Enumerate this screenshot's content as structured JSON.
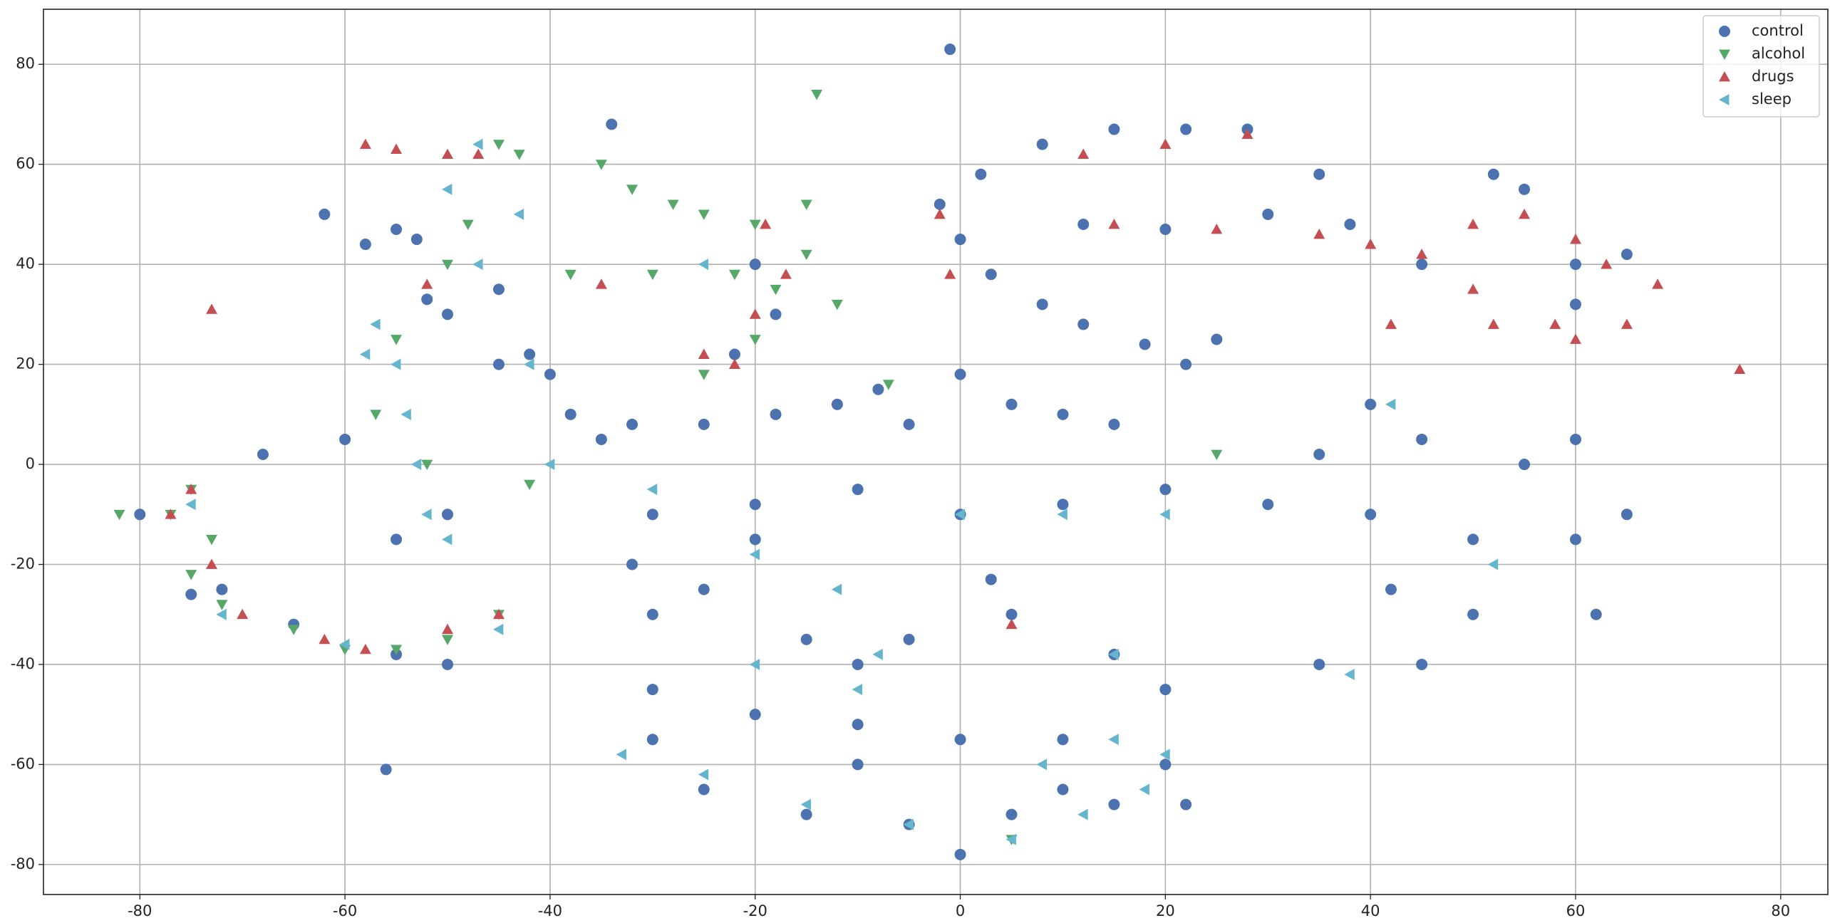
{
  "chart_data": {
    "type": "scatter",
    "xlim": [
      -89.4,
      84.6
    ],
    "ylim": [
      -86,
      91
    ],
    "xticks": [
      -80,
      -60,
      -40,
      -20,
      0,
      20,
      40,
      60,
      80
    ],
    "yticks": [
      -80,
      -60,
      -40,
      -20,
      0,
      20,
      40,
      60,
      80
    ],
    "grid": true,
    "legend": "upper right",
    "series": [
      {
        "name": "control",
        "color": "#4c72b0",
        "marker": "o",
        "x": [
          -55,
          -53,
          -62,
          -58,
          -52,
          -50,
          -45,
          -42,
          -40,
          -38,
          -35,
          -32,
          -25,
          -18,
          -12,
          -8,
          -5,
          0,
          5,
          10,
          15,
          -34,
          -22,
          -18,
          -20,
          -45,
          -60,
          -55,
          -50,
          -68,
          -72,
          -65,
          -55,
          -50,
          -75,
          -56,
          -1,
          -80,
          -2,
          2,
          8,
          15,
          22,
          28,
          0,
          3,
          8,
          12,
          18,
          22,
          25,
          12,
          20,
          30,
          38,
          35,
          45,
          52,
          55,
          60,
          65,
          60,
          -30,
          -20,
          -10,
          0,
          10,
          20,
          30,
          40,
          50,
          60,
          65,
          45,
          40,
          55,
          60,
          35,
          42,
          50,
          62,
          45,
          35,
          -32,
          -25,
          -20,
          -30,
          -15,
          -10,
          -5,
          5,
          15,
          20,
          -30,
          -20,
          -10,
          0,
          10,
          20,
          22,
          -30,
          -25,
          -15,
          -5,
          5,
          15,
          0,
          -10,
          10,
          3
        ],
        "y": [
          47,
          45,
          50,
          44,
          33,
          30,
          20,
          22,
          18,
          10,
          5,
          8,
          8,
          10,
          12,
          15,
          8,
          18,
          12,
          10,
          8,
          68,
          22,
          30,
          40,
          35,
          5,
          -15,
          -10,
          2,
          -25,
          -32,
          -38,
          -40,
          -26,
          -61,
          83,
          -10,
          52,
          58,
          64,
          67,
          67,
          67,
          45,
          38,
          32,
          28,
          24,
          20,
          25,
          48,
          47,
          50,
          48,
          58,
          40,
          58,
          55,
          40,
          42,
          32,
          -10,
          -8,
          -5,
          -10,
          -8,
          -5,
          -8,
          -10,
          -15,
          -15,
          -10,
          5,
          12,
          0,
          5,
          2,
          -25,
          -30,
          -30,
          -40,
          -40,
          -20,
          -25,
          -15,
          -30,
          -35,
          -40,
          -35,
          -30,
          -38,
          -45,
          -45,
          -50,
          -52,
          -55,
          -55,
          -60,
          -68,
          -55,
          -65,
          -70,
          -72,
          -70,
          -68,
          -78,
          -60,
          -65,
          -23
        ]
      },
      {
        "name": "alcohol",
        "color": "#55a868",
        "marker": "v",
        "x": [
          -45,
          -43,
          -35,
          -32,
          -28,
          -25,
          -20,
          -15,
          -22,
          -18,
          -20,
          -25,
          -14,
          -30,
          -38,
          -50,
          -48,
          -55,
          -57,
          -52,
          -75,
          -77,
          -73,
          -75,
          -72,
          -65,
          -60,
          -55,
          -50,
          -45,
          -82,
          -12,
          -15,
          -42,
          25,
          -7,
          5
        ],
        "y": [
          64,
          62,
          60,
          55,
          52,
          50,
          48,
          52,
          38,
          35,
          25,
          18,
          74,
          38,
          38,
          40,
          48,
          25,
          10,
          0,
          -5,
          -10,
          -15,
          -22,
          -28,
          -33,
          -37,
          -37,
          -35,
          -30,
          -10,
          32,
          42,
          -4,
          2,
          16,
          -75
        ]
      },
      {
        "name": "drugs",
        "color": "#c44e52",
        "marker": "^",
        "x": [
          -58,
          -55,
          -50,
          -73,
          -25,
          -22,
          -20,
          -19,
          -17,
          -35,
          -75,
          -73,
          -77,
          -70,
          -62,
          -58,
          -50,
          -45,
          -47,
          20,
          28,
          12,
          15,
          25,
          35,
          40,
          45,
          50,
          55,
          60,
          50,
          52,
          58,
          65,
          63,
          68,
          60,
          42,
          76,
          -2,
          -1,
          5,
          -52
        ],
        "y": [
          64,
          63,
          62,
          31,
          22,
          20,
          30,
          48,
          38,
          36,
          -5,
          -20,
          -10,
          -30,
          -35,
          -37,
          -33,
          -30,
          62,
          64,
          66,
          62,
          48,
          47,
          46,
          44,
          42,
          48,
          50,
          45,
          35,
          28,
          28,
          28,
          40,
          36,
          25,
          28,
          19,
          50,
          38,
          -32,
          36
        ]
      },
      {
        "name": "sleep",
        "color": "#64b5cd",
        "marker": "<",
        "x": [
          -47,
          -43,
          -50,
          -57,
          -55,
          -54,
          -53,
          -52,
          -50,
          -58,
          -47,
          -42,
          -40,
          -75,
          -72,
          -60,
          -45,
          -33,
          -25,
          -15,
          -5,
          5,
          12,
          18,
          20,
          15,
          8,
          -10,
          -20,
          -12,
          0,
          10,
          20,
          38,
          42,
          -30,
          -20,
          52,
          15,
          -8,
          -25
        ],
        "y": [
          64,
          50,
          55,
          28,
          20,
          10,
          0,
          -10,
          -15,
          22,
          40,
          20,
          0,
          -8,
          -30,
          -36,
          -33,
          -58,
          -62,
          -68,
          -72,
          -75,
          -70,
          -65,
          -58,
          -55,
          -60,
          -45,
          -40,
          -25,
          -10,
          -10,
          -10,
          -42,
          12,
          -5,
          -18,
          -20,
          -38,
          -38,
          40
        ]
      }
    ]
  }
}
